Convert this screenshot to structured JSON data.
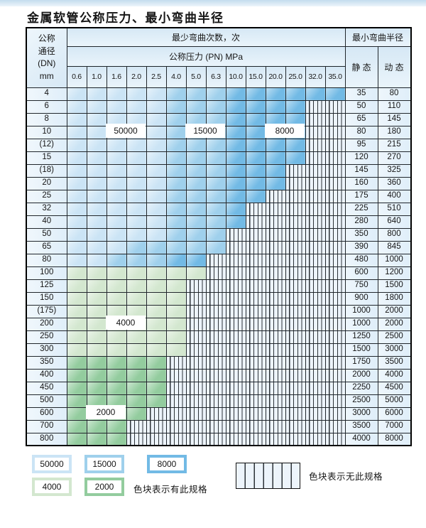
{
  "title": "金属软管公称压力、最小弯曲半径",
  "colors": {
    "L": "#cbe4f5",
    "M": "#9fd0ec",
    "D": "#72bae5",
    "G1": "#d3e7cf",
    "G2": "#93cc9e",
    "hatch_bg": "#edf4fb",
    "hatch_line": "#2c3237",
    "border": "#20262b",
    "header_bg": "#d6e8f5",
    "panel_bg": "#dfeef9",
    "strip": "#c3dced"
  },
  "chart_data": {
    "type": "table",
    "title": "金属软管公称压力、最小弯曲半径",
    "bend_times_header": "最少弯曲次数，次",
    "pressure_header": "公称压力 (PN) MPa",
    "dn_header_lines": [
      "公称",
      "通径",
      "(DN)",
      "mm"
    ],
    "radius_header": "最小弯曲半径",
    "static_header": "静 态",
    "dynamic_header": "动 态",
    "pn_columns": [
      "0.6",
      "1.0",
      "1.6",
      "2.0",
      "2.5",
      "4.0",
      "5.0",
      "6.3",
      "10.0",
      "15.0",
      "20.0",
      "25.0",
      "32.0",
      "35.0"
    ],
    "shade_meaning": {
      "L": "50000",
      "M": "15000",
      "D": "8000",
      "G1": "4000",
      "G2": "2000",
      "H": "无此规格"
    },
    "rows": [
      {
        "dn": "4",
        "static": "35",
        "dynamic": "80",
        "bands": [
          [
            "L",
            5
          ],
          [
            "M",
            3
          ],
          [
            "D",
            6
          ]
        ]
      },
      {
        "dn": "6",
        "static": "50",
        "dynamic": "110",
        "bands": [
          [
            "L",
            5
          ],
          [
            "M",
            3
          ],
          [
            "D",
            4
          ]
        ]
      },
      {
        "dn": "8",
        "static": "65",
        "dynamic": "145",
        "bands": [
          [
            "L",
            5
          ],
          [
            "M",
            3
          ],
          [
            "D",
            4
          ]
        ]
      },
      {
        "dn": "10",
        "static": "80",
        "dynamic": "180",
        "bands": [
          [
            "L",
            5
          ],
          [
            "M",
            3
          ],
          [
            "D",
            4
          ]
        ]
      },
      {
        "dn": "(12)",
        "static": "95",
        "dynamic": "215",
        "bands": [
          [
            "L",
            5
          ],
          [
            "M",
            3
          ],
          [
            "D",
            4
          ]
        ]
      },
      {
        "dn": "15",
        "static": "120",
        "dynamic": "270",
        "bands": [
          [
            "L",
            5
          ],
          [
            "M",
            3
          ],
          [
            "D",
            4
          ]
        ]
      },
      {
        "dn": "(18)",
        "static": "145",
        "dynamic": "325",
        "bands": [
          [
            "L",
            5
          ],
          [
            "M",
            3
          ],
          [
            "D",
            3
          ]
        ]
      },
      {
        "dn": "20",
        "static": "160",
        "dynamic": "360",
        "bands": [
          [
            "L",
            5
          ],
          [
            "M",
            3
          ],
          [
            "D",
            3
          ]
        ]
      },
      {
        "dn": "25",
        "static": "175",
        "dynamic": "400",
        "bands": [
          [
            "L",
            5
          ],
          [
            "M",
            3
          ],
          [
            "D",
            2
          ]
        ]
      },
      {
        "dn": "32",
        "static": "225",
        "dynamic": "510",
        "bands": [
          [
            "L",
            5
          ],
          [
            "M",
            3
          ],
          [
            "D",
            1
          ]
        ]
      },
      {
        "dn": "40",
        "static": "280",
        "dynamic": "640",
        "bands": [
          [
            "L",
            5
          ],
          [
            "M",
            3
          ],
          [
            "D",
            1
          ]
        ]
      },
      {
        "dn": "50",
        "static": "350",
        "dynamic": "800",
        "bands": [
          [
            "L",
            5
          ],
          [
            "M",
            3
          ]
        ]
      },
      {
        "dn": "65",
        "static": "390",
        "dynamic": "845",
        "bands": [
          [
            "L",
            3
          ],
          [
            "M",
            5
          ]
        ]
      },
      {
        "dn": "80",
        "static": "480",
        "dynamic": "1000",
        "bands": [
          [
            "L",
            2
          ],
          [
            "M",
            3
          ],
          [
            "D",
            2
          ]
        ]
      },
      {
        "dn": "100",
        "static": "600",
        "dynamic": "1200",
        "bands": [
          [
            "G1",
            7
          ]
        ]
      },
      {
        "dn": "125",
        "static": "750",
        "dynamic": "1500",
        "bands": [
          [
            "G1",
            6
          ]
        ]
      },
      {
        "dn": "150",
        "static": "900",
        "dynamic": "1800",
        "bands": [
          [
            "G1",
            6
          ]
        ]
      },
      {
        "dn": "(175)",
        "static": "1000",
        "dynamic": "2000",
        "bands": [
          [
            "G1",
            6
          ]
        ]
      },
      {
        "dn": "200",
        "static": "1000",
        "dynamic": "2000",
        "bands": [
          [
            "G1",
            6
          ]
        ]
      },
      {
        "dn": "250",
        "static": "1250",
        "dynamic": "2500",
        "bands": [
          [
            "G1",
            6
          ]
        ]
      },
      {
        "dn": "300",
        "static": "1500",
        "dynamic": "3000",
        "bands": [
          [
            "G1",
            6
          ]
        ]
      },
      {
        "dn": "350",
        "static": "1750",
        "dynamic": "3500",
        "bands": [
          [
            "G2",
            5
          ]
        ]
      },
      {
        "dn": "400",
        "static": "2000",
        "dynamic": "4000",
        "bands": [
          [
            "G2",
            5
          ]
        ]
      },
      {
        "dn": "450",
        "static": "2250",
        "dynamic": "4500",
        "bands": [
          [
            "G2",
            5
          ]
        ]
      },
      {
        "dn": "500",
        "static": "2500",
        "dynamic": "5000",
        "bands": [
          [
            "G2",
            5
          ]
        ]
      },
      {
        "dn": "600",
        "static": "3000",
        "dynamic": "6000",
        "bands": [
          [
            "G2",
            4
          ]
        ]
      },
      {
        "dn": "700",
        "static": "3500",
        "dynamic": "7000",
        "bands": [
          [
            "G2",
            3
          ]
        ]
      },
      {
        "dn": "800",
        "static": "4000",
        "dynamic": "8000",
        "bands": [
          [
            "G2",
            3
          ]
        ]
      }
    ],
    "overlay_labels": [
      {
        "text": "50000",
        "row": 3,
        "colStart": 2,
        "colEnd": 3
      },
      {
        "text": "15000",
        "row": 3,
        "colStart": 6,
        "colEnd": 7
      },
      {
        "text": "8000",
        "row": 3,
        "colStart": 10,
        "colEnd": 11
      },
      {
        "text": "4000",
        "row": 18,
        "colStart": 2,
        "colEnd": 3
      },
      {
        "text": "2000",
        "row": 25,
        "colStart": 1,
        "colEnd": 2
      }
    ]
  },
  "legend": {
    "row1": [
      {
        "value": "50000",
        "shade": "L"
      },
      {
        "value": "15000",
        "shade": "M"
      },
      {
        "value": "8000",
        "shade": "D"
      }
    ],
    "row2": [
      {
        "value": "4000",
        "shade": "G1"
      },
      {
        "value": "2000",
        "shade": "G2"
      }
    ],
    "has_spec_text": "色块表示有此规格",
    "no_spec_text": "色块表示无此规格"
  }
}
